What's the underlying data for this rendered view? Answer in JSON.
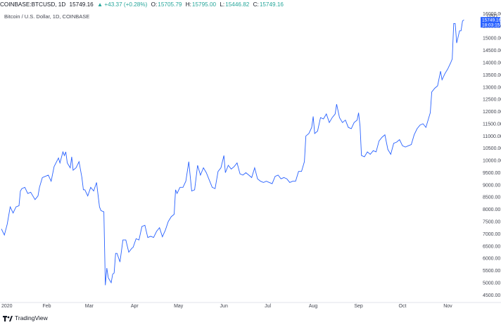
{
  "header": {
    "symbol": "COINBASE:BTCUSD, 1D",
    "last": "15749.16",
    "change": "▲ +43.37 (+0.28%)",
    "o_label": "O:",
    "o_value": "15705.79",
    "h_label": "H:",
    "h_value": "15795.00",
    "l_label": "L:",
    "l_value": "15446.82",
    "c_label": "C:",
    "c_value": "15749.16"
  },
  "subtitle": "Bitcoin / U.S. Dollar, 1D, COINBASE",
  "footer": {
    "brand": "TradingView"
  },
  "colors": {
    "line": "#2962ff",
    "price_tag": "#2962ff",
    "axis_text": "#434651",
    "up": "#26a69a"
  },
  "chart_data": {
    "type": "line",
    "title": "Bitcoin / U.S. Dollar, 1D, COINBASE",
    "y_unit": "USD",
    "x_start": "2020-01-01",
    "x_end": "2020-11-12",
    "xlim": [
      "2020-01-01",
      "2020-11-20"
    ],
    "ylim": [
      4250,
      16100
    ],
    "y_ticks": [
      4500,
      5000,
      5500,
      6000,
      6500,
      7000,
      7500,
      8000,
      8500,
      9000,
      9500,
      10000,
      10500,
      11000,
      11500,
      12000,
      12500,
      13000,
      13500,
      14000,
      14500,
      15000,
      15500,
      16000
    ],
    "y_tick_labels": [
      "4500.00",
      "5000.00",
      "5500.00",
      "6000.00",
      "6500.00",
      "7000.00",
      "7500.00",
      "8000.00",
      "8500.00",
      "9000.00",
      "9500.00",
      "10000.00",
      "10500.00",
      "11000.00",
      "11500.00",
      "12000.00",
      "12500.00",
      "13000.00",
      "13500.00",
      "14000.00",
      "14500.00",
      "15000.00",
      "15500.00",
      "16000.00"
    ],
    "x_ticks": [
      {
        "date": "2020-01-01",
        "label": "2020"
      },
      {
        "date": "2020-02-01",
        "label": "Feb"
      },
      {
        "date": "2020-03-01",
        "label": "Mar"
      },
      {
        "date": "2020-04-01",
        "label": "Apr"
      },
      {
        "date": "2020-05-01",
        "label": "May"
      },
      {
        "date": "2020-06-01",
        "label": "Jun"
      },
      {
        "date": "2020-07-01",
        "label": "Jul"
      },
      {
        "date": "2020-08-01",
        "label": "Aug"
      },
      {
        "date": "2020-09-01",
        "label": "Sep"
      },
      {
        "date": "2020-10-01",
        "label": "Oct"
      },
      {
        "date": "2020-11-01",
        "label": "Nov"
      }
    ],
    "last_price_label": "15749.16",
    "countdown_label": "18:03:15",
    "series": [
      {
        "values": [
          [
            "2020-01-01",
            7200
          ],
          [
            "2020-01-03",
            6950
          ],
          [
            "2020-01-05",
            7400
          ],
          [
            "2020-01-07",
            8100
          ],
          [
            "2020-01-09",
            7850
          ],
          [
            "2020-01-11",
            8100
          ],
          [
            "2020-01-13",
            8150
          ],
          [
            "2020-01-14",
            8750
          ],
          [
            "2020-01-15",
            8850
          ],
          [
            "2020-01-17",
            8900
          ],
          [
            "2020-01-19",
            8650
          ],
          [
            "2020-01-21",
            8700
          ],
          [
            "2020-01-24",
            8400
          ],
          [
            "2020-01-26",
            8550
          ],
          [
            "2020-01-27",
            8900
          ],
          [
            "2020-01-29",
            9300
          ],
          [
            "2020-01-31",
            9350
          ],
          [
            "2020-02-02",
            9400
          ],
          [
            "2020-02-04",
            9150
          ],
          [
            "2020-02-06",
            9750
          ],
          [
            "2020-02-09",
            10100
          ],
          [
            "2020-02-10",
            9900
          ],
          [
            "2020-02-12",
            10350
          ],
          [
            "2020-02-13",
            10200
          ],
          [
            "2020-02-14",
            10350
          ],
          [
            "2020-02-15",
            9900
          ],
          [
            "2020-02-17",
            9700
          ],
          [
            "2020-02-18",
            10150
          ],
          [
            "2020-02-19",
            9600
          ],
          [
            "2020-02-21",
            9700
          ],
          [
            "2020-02-23",
            9950
          ],
          [
            "2020-02-25",
            9300
          ],
          [
            "2020-02-26",
            8800
          ],
          [
            "2020-02-27",
            8800
          ],
          [
            "2020-02-29",
            8550
          ],
          [
            "2020-03-02",
            8900
          ],
          [
            "2020-03-04",
            8750
          ],
          [
            "2020-03-06",
            9100
          ],
          [
            "2020-03-08",
            8100
          ],
          [
            "2020-03-09",
            7950
          ],
          [
            "2020-03-11",
            7900
          ],
          [
            "2020-03-12",
            4900
          ],
          [
            "2020-03-13",
            5600
          ],
          [
            "2020-03-14",
            5200
          ],
          [
            "2020-03-16",
            5000
          ],
          [
            "2020-03-17",
            5350
          ],
          [
            "2020-03-18",
            5400
          ],
          [
            "2020-03-19",
            6200
          ],
          [
            "2020-03-20",
            6200
          ],
          [
            "2020-03-22",
            5850
          ],
          [
            "2020-03-24",
            6750
          ],
          [
            "2020-03-26",
            6750
          ],
          [
            "2020-03-28",
            6250
          ],
          [
            "2020-03-30",
            6400
          ],
          [
            "2020-03-31",
            6450
          ],
          [
            "2020-04-02",
            6800
          ],
          [
            "2020-04-04",
            6750
          ],
          [
            "2020-04-06",
            7300
          ],
          [
            "2020-04-08",
            7350
          ],
          [
            "2020-04-10",
            6850
          ],
          [
            "2020-04-12",
            6900
          ],
          [
            "2020-04-14",
            6850
          ],
          [
            "2020-04-16",
            7100
          ],
          [
            "2020-04-18",
            7250
          ],
          [
            "2020-04-20",
            6880
          ],
          [
            "2020-04-22",
            7150
          ],
          [
            "2020-04-24",
            7500
          ],
          [
            "2020-04-26",
            7700
          ],
          [
            "2020-04-28",
            7800
          ],
          [
            "2020-04-29",
            8800
          ],
          [
            "2020-04-30",
            8650
          ],
          [
            "2020-05-02",
            8900
          ],
          [
            "2020-05-04",
            8900
          ],
          [
            "2020-05-06",
            9150
          ],
          [
            "2020-05-08",
            9950
          ],
          [
            "2020-05-10",
            8750
          ],
          [
            "2020-05-12",
            8800
          ],
          [
            "2020-05-14",
            9800
          ],
          [
            "2020-05-16",
            9400
          ],
          [
            "2020-05-18",
            9700
          ],
          [
            "2020-05-20",
            9500
          ],
          [
            "2020-05-22",
            9200
          ],
          [
            "2020-05-24",
            8900
          ],
          [
            "2020-05-26",
            8850
          ],
          [
            "2020-05-28",
            9550
          ],
          [
            "2020-05-30",
            9700
          ],
          [
            "2020-06-01",
            10200
          ],
          [
            "2020-06-02",
            9500
          ],
          [
            "2020-06-04",
            9800
          ],
          [
            "2020-06-06",
            9650
          ],
          [
            "2020-06-08",
            9750
          ],
          [
            "2020-06-10",
            9900
          ],
          [
            "2020-06-12",
            9450
          ],
          [
            "2020-06-14",
            9400
          ],
          [
            "2020-06-16",
            9500
          ],
          [
            "2020-06-18",
            9400
          ],
          [
            "2020-06-20",
            9300
          ],
          [
            "2020-06-22",
            9700
          ],
          [
            "2020-06-24",
            9250
          ],
          [
            "2020-06-26",
            9150
          ],
          [
            "2020-06-28",
            9100
          ],
          [
            "2020-06-30",
            9150
          ],
          [
            "2020-07-02",
            9100
          ],
          [
            "2020-07-04",
            9050
          ],
          [
            "2020-07-06",
            9350
          ],
          [
            "2020-07-08",
            9400
          ],
          [
            "2020-07-10",
            9250
          ],
          [
            "2020-07-12",
            9300
          ],
          [
            "2020-07-14",
            9250
          ],
          [
            "2020-07-16",
            9100
          ],
          [
            "2020-07-18",
            9150
          ],
          [
            "2020-07-20",
            9150
          ],
          [
            "2020-07-22",
            9550
          ],
          [
            "2020-07-24",
            9550
          ],
          [
            "2020-07-26",
            9950
          ],
          [
            "2020-07-27",
            11000
          ],
          [
            "2020-07-29",
            11100
          ],
          [
            "2020-07-31",
            11350
          ],
          [
            "2020-08-01",
            11800
          ],
          [
            "2020-08-02",
            11100
          ],
          [
            "2020-08-04",
            11200
          ],
          [
            "2020-08-06",
            11750
          ],
          [
            "2020-08-08",
            11700
          ],
          [
            "2020-08-10",
            11900
          ],
          [
            "2020-08-12",
            11550
          ],
          [
            "2020-08-14",
            11750
          ],
          [
            "2020-08-16",
            11900
          ],
          [
            "2020-08-17",
            12300
          ],
          [
            "2020-08-19",
            11750
          ],
          [
            "2020-08-21",
            11550
          ],
          [
            "2020-08-23",
            11650
          ],
          [
            "2020-08-25",
            11350
          ],
          [
            "2020-08-27",
            11300
          ],
          [
            "2020-08-29",
            11550
          ],
          [
            "2020-08-31",
            11650
          ],
          [
            "2020-09-01",
            11950
          ],
          [
            "2020-09-02",
            11400
          ],
          [
            "2020-09-03",
            10200
          ],
          [
            "2020-09-05",
            10150
          ],
          [
            "2020-09-07",
            10350
          ],
          [
            "2020-09-09",
            10250
          ],
          [
            "2020-09-11",
            10400
          ],
          [
            "2020-09-13",
            10350
          ],
          [
            "2020-09-15",
            10800
          ],
          [
            "2020-09-17",
            10950
          ],
          [
            "2020-09-19",
            11050
          ],
          [
            "2020-09-21",
            10450
          ],
          [
            "2020-09-23",
            10250
          ],
          [
            "2020-09-25",
            10700
          ],
          [
            "2020-09-27",
            10750
          ],
          [
            "2020-09-29",
            10850
          ],
          [
            "2020-10-01",
            10600
          ],
          [
            "2020-10-03",
            10550
          ],
          [
            "2020-10-05",
            10600
          ],
          [
            "2020-10-07",
            10650
          ],
          [
            "2020-10-09",
            11050
          ],
          [
            "2020-10-11",
            11300
          ],
          [
            "2020-10-13",
            11450
          ],
          [
            "2020-10-15",
            11500
          ],
          [
            "2020-10-17",
            11350
          ],
          [
            "2020-10-19",
            11750
          ],
          [
            "2020-10-20",
            11950
          ],
          [
            "2020-10-21",
            12800
          ],
          [
            "2020-10-23",
            12950
          ],
          [
            "2020-10-25",
            13050
          ],
          [
            "2020-10-27",
            13650
          ],
          [
            "2020-10-28",
            13300
          ],
          [
            "2020-10-30",
            13550
          ],
          [
            "2020-11-01",
            13750
          ],
          [
            "2020-11-03",
            14000
          ],
          [
            "2020-11-04",
            14150
          ],
          [
            "2020-11-05",
            15600
          ],
          [
            "2020-11-06",
            15600
          ],
          [
            "2020-11-07",
            14800
          ],
          [
            "2020-11-09",
            15300
          ],
          [
            "2020-11-10",
            15300
          ],
          [
            "2020-11-11",
            15700
          ],
          [
            "2020-11-12",
            15749
          ]
        ]
      }
    ]
  }
}
